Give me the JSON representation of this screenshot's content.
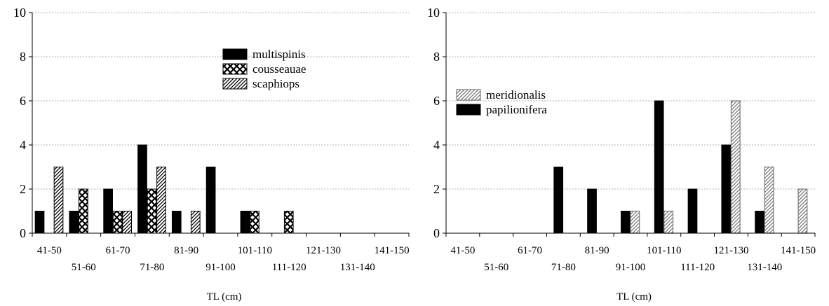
{
  "chart_data": [
    {
      "type": "bar",
      "categories": [
        "41-50",
        "51-60",
        "61-70",
        "71-80",
        "81-90",
        "91-100",
        "101-110",
        "111-120",
        "121-130",
        "131-140",
        "141-150"
      ],
      "series": [
        {
          "name": "multispinis",
          "values": [
            1,
            1,
            2,
            4,
            1,
            3,
            1,
            0,
            0,
            0,
            0
          ]
        },
        {
          "name": "cousseauae",
          "values": [
            0,
            2,
            1,
            2,
            0,
            0,
            1,
            1,
            0,
            0,
            0
          ]
        },
        {
          "name": "scaphiops",
          "values": [
            3,
            0,
            1,
            3,
            1,
            0,
            0,
            0,
            0,
            0,
            0
          ]
        }
      ],
      "title": "",
      "xlabel": "TL (cm)",
      "ylabel": "",
      "ylim": [
        0,
        10
      ],
      "yticks": [
        0,
        2,
        4,
        6,
        8,
        10
      ],
      "grid": "horizontal dotted",
      "legend": "top-center"
    },
    {
      "type": "bar",
      "categories": [
        "41-50",
        "51-60",
        "61-70",
        "71-80",
        "81-90",
        "91-100",
        "101-110",
        "111-120",
        "121-130",
        "131-140",
        "141-150"
      ],
      "series": [
        {
          "name": "papilionifera",
          "values": [
            0,
            0,
            0,
            3,
            2,
            1,
            6,
            2,
            4,
            1,
            0
          ]
        },
        {
          "name": "meridionalis",
          "values": [
            0,
            0,
            0,
            0,
            0,
            1,
            1,
            0,
            6,
            3,
            2
          ]
        }
      ],
      "title": "",
      "xlabel": "TL (cm)",
      "ylabel": "",
      "ylim": [
        0,
        10
      ],
      "yticks": [
        0,
        2,
        4,
        6,
        8,
        10
      ],
      "grid": "horizontal dotted",
      "legend": "top-left"
    }
  ],
  "styles": {
    "multispinis": "#000000",
    "papilionifera": "#000000"
  }
}
